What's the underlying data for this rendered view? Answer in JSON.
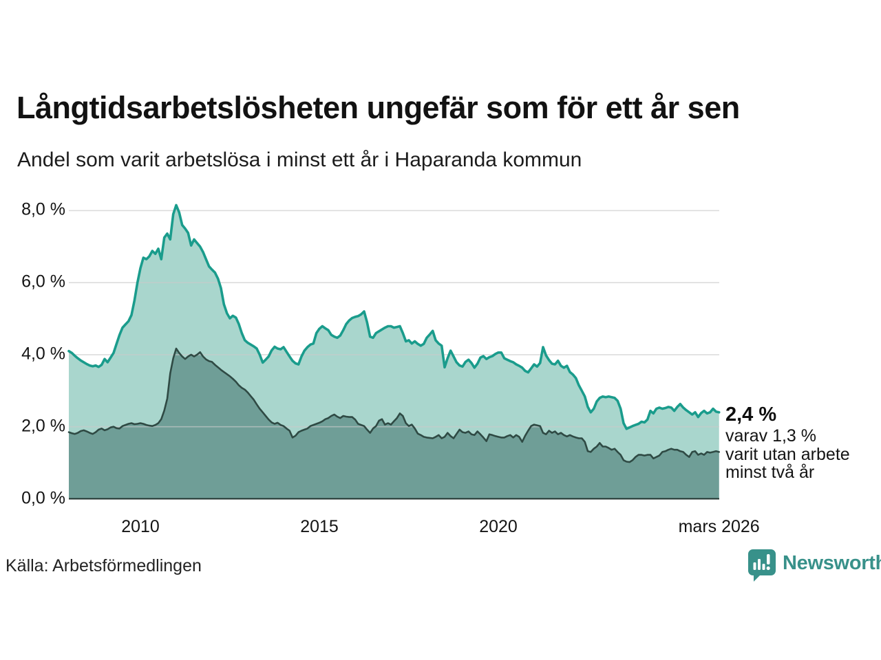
{
  "header": {
    "title": "Långtidsarbetslösheten ungefär som för ett år sen",
    "subtitle": "Andel som varit arbetslösa i minst ett år i Haparanda kommun"
  },
  "footer": {
    "source": "Källa: Arbetsförmedlingen",
    "brand": "Newsworthy"
  },
  "colors": {
    "series1_line": "#1a9c8c",
    "series1_fill": "#a9d6cd",
    "series2_line": "#2f4a44",
    "series2_fill": "#6f9e97",
    "gridline": "#c9c9c9",
    "axis_line": "#22332f",
    "brand_teal": "#38918a"
  },
  "chart_data": {
    "type": "area",
    "title": "Långtidsarbetslösheten ungefär som för ett år sen",
    "subtitle": "Andel som varit arbetslösa i minst ett år i Haparanda kommun",
    "region": "Haparanda kommun",
    "x_axis": {
      "start": 2008.0,
      "end": 2026.1667,
      "ticks": [
        {
          "label": "2010",
          "year": 2010
        },
        {
          "label": "2015",
          "year": 2015
        },
        {
          "label": "2020",
          "year": 2020
        },
        {
          "label": "mars 2026",
          "year": 2026.1667
        }
      ]
    },
    "y_axis": {
      "min": 0,
      "max": 8,
      "ticks": [
        {
          "label": "8,0 %",
          "value": 8
        },
        {
          "label": "6,0 %",
          "value": 6
        },
        {
          "label": "4,0 %",
          "value": 4
        },
        {
          "label": "2,0 %",
          "value": 2
        },
        {
          "label": "0,0 %",
          "value": 0
        }
      ],
      "grid": true
    },
    "annotation": {
      "headline": "2,4 %",
      "lines": [
        "varav 1,3 %",
        "varit utan arbete",
        "minst två år"
      ]
    },
    "series": [
      {
        "name": "Arbetslösa minst ett år",
        "final_value_pct": 2.4,
        "line_color": "#1a9c8c",
        "fill_color": "#a9d6cd",
        "start_year": 2008.0,
        "step_years": 0.0833333,
        "values": [
          4.1,
          4.05,
          3.97,
          3.9,
          3.84,
          3.79,
          3.74,
          3.7,
          3.68,
          3.7,
          3.66,
          3.72,
          3.88,
          3.79,
          3.92,
          4.05,
          4.3,
          4.55,
          4.75,
          4.84,
          4.93,
          5.1,
          5.5,
          6.0,
          6.4,
          6.69,
          6.65,
          6.73,
          6.88,
          6.8,
          6.94,
          6.65,
          7.25,
          7.36,
          7.2,
          7.9,
          8.15,
          7.95,
          7.6,
          7.5,
          7.38,
          7.03,
          7.2,
          7.1,
          7.0,
          6.85,
          6.65,
          6.45,
          6.36,
          6.28,
          6.11,
          5.85,
          5.4,
          5.15,
          5.01,
          5.08,
          5.03,
          4.85,
          4.6,
          4.4,
          4.33,
          4.28,
          4.23,
          4.17,
          4.0,
          3.78,
          3.86,
          3.95,
          4.12,
          4.22,
          4.17,
          4.15,
          4.21,
          4.08,
          3.95,
          3.83,
          3.76,
          3.73,
          3.95,
          4.11,
          4.21,
          4.28,
          4.31,
          4.6,
          4.72,
          4.79,
          4.73,
          4.68,
          4.55,
          4.5,
          4.47,
          4.53,
          4.68,
          4.85,
          4.95,
          5.02,
          5.05,
          5.07,
          5.12,
          5.2,
          4.9,
          4.5,
          4.47,
          4.6,
          4.65,
          4.7,
          4.75,
          4.79,
          4.79,
          4.75,
          4.77,
          4.79,
          4.6,
          4.37,
          4.4,
          4.31,
          4.37,
          4.3,
          4.25,
          4.3,
          4.47,
          4.56,
          4.66,
          4.4,
          4.31,
          4.25,
          3.65,
          3.9,
          4.11,
          3.95,
          3.79,
          3.7,
          3.67,
          3.8,
          3.86,
          3.77,
          3.64,
          3.75,
          3.92,
          3.96,
          3.88,
          3.93,
          3.96,
          4.02,
          4.06,
          4.06,
          3.9,
          3.86,
          3.82,
          3.79,
          3.73,
          3.69,
          3.64,
          3.55,
          3.51,
          3.62,
          3.73,
          3.67,
          3.77,
          4.21,
          3.98,
          3.85,
          3.75,
          3.73,
          3.83,
          3.69,
          3.64,
          3.69,
          3.52,
          3.45,
          3.35,
          3.15,
          3.0,
          2.84,
          2.55,
          2.4,
          2.5,
          2.7,
          2.8,
          2.84,
          2.82,
          2.84,
          2.82,
          2.8,
          2.72,
          2.5,
          2.1,
          1.94,
          1.98,
          2.02,
          2.05,
          2.08,
          2.14,
          2.12,
          2.2,
          2.44,
          2.37,
          2.5,
          2.53,
          2.5,
          2.52,
          2.55,
          2.53,
          2.44,
          2.55,
          2.63,
          2.53,
          2.46,
          2.4,
          2.34,
          2.4,
          2.27,
          2.38,
          2.44,
          2.37,
          2.4,
          2.5,
          2.42,
          2.4
        ]
      },
      {
        "name": "Arbetslösa minst två år",
        "final_value_pct": 1.3,
        "line_color": "#2f4a44",
        "fill_color": "#6f9e97",
        "start_year": 2008.0,
        "step_years": 0.0833333,
        "values": [
          1.85,
          1.82,
          1.8,
          1.83,
          1.88,
          1.9,
          1.87,
          1.83,
          1.8,
          1.85,
          1.92,
          1.95,
          1.9,
          1.93,
          1.98,
          2.0,
          1.96,
          1.95,
          2.02,
          2.05,
          2.08,
          2.1,
          2.07,
          2.08,
          2.1,
          2.08,
          2.05,
          2.03,
          2.02,
          2.05,
          2.1,
          2.21,
          2.45,
          2.78,
          3.48,
          3.9,
          4.17,
          4.05,
          3.95,
          3.88,
          3.95,
          4.0,
          3.95,
          4.0,
          4.07,
          3.95,
          3.87,
          3.82,
          3.8,
          3.72,
          3.65,
          3.58,
          3.52,
          3.46,
          3.4,
          3.33,
          3.25,
          3.15,
          3.08,
          3.03,
          2.95,
          2.85,
          2.75,
          2.62,
          2.5,
          2.4,
          2.3,
          2.2,
          2.12,
          2.08,
          2.11,
          2.05,
          2.02,
          1.95,
          1.89,
          1.7,
          1.75,
          1.85,
          1.89,
          1.92,
          1.95,
          2.02,
          2.05,
          2.08,
          2.11,
          2.15,
          2.21,
          2.24,
          2.3,
          2.34,
          2.28,
          2.24,
          2.3,
          2.28,
          2.27,
          2.27,
          2.2,
          2.08,
          2.05,
          2.02,
          1.92,
          1.83,
          1.95,
          2.02,
          2.17,
          2.21,
          2.06,
          2.1,
          2.06,
          2.15,
          2.24,
          2.37,
          2.3,
          2.1,
          2.02,
          2.06,
          1.95,
          1.81,
          1.77,
          1.72,
          1.7,
          1.69,
          1.68,
          1.72,
          1.77,
          1.68,
          1.72,
          1.83,
          1.74,
          1.68,
          1.8,
          1.92,
          1.85,
          1.83,
          1.87,
          1.79,
          1.77,
          1.87,
          1.79,
          1.7,
          1.6,
          1.79,
          1.77,
          1.74,
          1.72,
          1.7,
          1.7,
          1.74,
          1.77,
          1.7,
          1.77,
          1.72,
          1.58,
          1.75,
          1.89,
          2.02,
          2.06,
          2.04,
          2.02,
          1.83,
          1.79,
          1.89,
          1.83,
          1.87,
          1.79,
          1.83,
          1.77,
          1.73,
          1.77,
          1.73,
          1.7,
          1.68,
          1.68,
          1.58,
          1.32,
          1.3,
          1.39,
          1.45,
          1.55,
          1.45,
          1.45,
          1.41,
          1.36,
          1.39,
          1.3,
          1.22,
          1.07,
          1.03,
          1.02,
          1.07,
          1.16,
          1.22,
          1.22,
          1.2,
          1.22,
          1.22,
          1.12,
          1.16,
          1.2,
          1.3,
          1.32,
          1.36,
          1.39,
          1.36,
          1.36,
          1.32,
          1.3,
          1.22,
          1.16,
          1.3,
          1.32,
          1.22,
          1.26,
          1.22,
          1.3,
          1.28,
          1.3,
          1.32,
          1.3
        ]
      }
    ]
  }
}
